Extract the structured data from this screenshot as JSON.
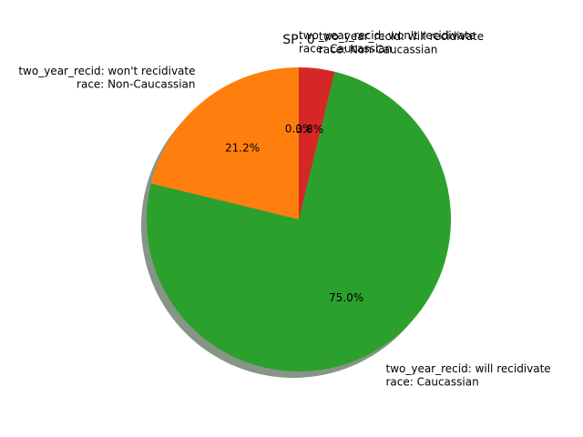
{
  "chart_data": {
    "type": "pie",
    "title": "SP: 0",
    "start_angle_deg": 90,
    "direction": "counterclockwise",
    "shadow": true,
    "slices": [
      {
        "label_lines": [
          "two_year_recid: won't recidivate",
          "race: Caucassian"
        ],
        "value": 0.0,
        "pct_label": "0.0%",
        "color": "#1f77b4"
      },
      {
        "label_lines": [
          "two_year_recid: won't recidivate",
          "race: Non-Caucassian"
        ],
        "value": 21.2,
        "pct_label": "21.2%",
        "color": "#ff7f0e"
      },
      {
        "label_lines": [
          "two_year_recid: will recidivate",
          "race: Caucassian"
        ],
        "value": 75.0,
        "pct_label": "75.0%",
        "color": "#2ca02c"
      },
      {
        "label_lines": [
          "two_year_recid: will recidivate",
          "race: Non-Caucassian"
        ],
        "value": 3.8,
        "pct_label": "3.8%",
        "color": "#d62728"
      }
    ]
  }
}
